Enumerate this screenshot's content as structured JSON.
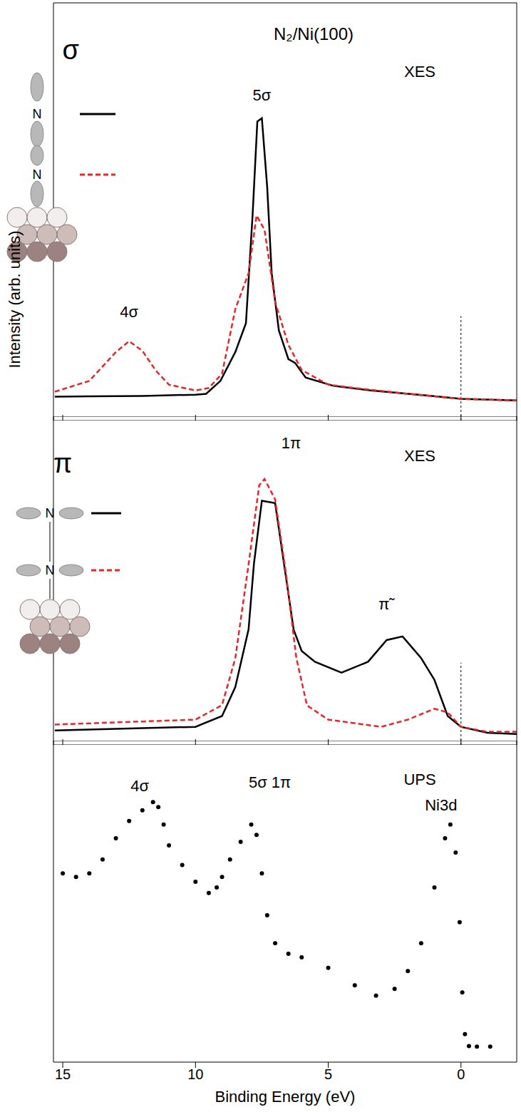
{
  "chart_data": [
    {
      "type": "line",
      "title": "N₂/Ni(100)",
      "ylabel": "Intensity (arb. units)",
      "xlim": [
        15.35,
        -2.1
      ],
      "xticks": [
        15,
        10,
        5,
        0
      ],
      "ylim": [
        0,
        100
      ],
      "yticks": [],
      "tick_labels": false,
      "legend": "upper left",
      "vlines": [
        0
      ],
      "annotations": [
        {
          "text": "σ",
          "x": 14.7,
          "y": 88.8
        },
        {
          "text": "5σ",
          "x": 7.5,
          "y": 78
        },
        {
          "text": "4σ",
          "x": 12.5,
          "y": 26
        },
        {
          "text": "XES",
          "x": 1.55,
          "y": 83.6
        }
      ],
      "series": [
        {
          "name": "N",
          "color": "#000000",
          "line_style": "solid",
          "x": [
            15.3,
            14,
            12,
            10,
            9.6,
            9.06,
            8.5,
            8.1,
            7.85,
            7.67,
            7.5,
            7.3,
            7.13,
            6.86,
            6.5,
            6.25,
            5.85,
            4.8,
            3.4,
            1.3,
            0,
            -2.1
          ],
          "values": [
            5.7,
            5.8,
            5.9,
            6.2,
            6.4,
            9.5,
            16.4,
            23.3,
            49.1,
            71.6,
            72.4,
            56,
            35.3,
            21.6,
            14.7,
            13.8,
            10.3,
            8.3,
            7.2,
            6,
            5.2,
            4.8
          ]
        },
        {
          "name": "N",
          "color": "#e8262a",
          "line_style": "dashed",
          "x": [
            15.3,
            14,
            13,
            12.5,
            12,
            11.5,
            11,
            10,
            9.5,
            9,
            8.5,
            8,
            7.7,
            7.4,
            7,
            6.5,
            6,
            5,
            4,
            2,
            0,
            -2.1
          ],
          "values": [
            6.9,
            9.5,
            16.4,
            19,
            16.7,
            12,
            8.6,
            7.2,
            7.8,
            11.2,
            26.7,
            35.3,
            49.1,
            45.7,
            28.4,
            18.1,
            12.1,
            8.6,
            7.8,
            6.4,
            5.2,
            4.8
          ]
        }
      ]
    },
    {
      "type": "line",
      "xlim": [
        15.35,
        -2.1
      ],
      "xticks": [
        15,
        10,
        5,
        0
      ],
      "ylim": [
        0,
        100
      ],
      "yticks": [],
      "tick_labels": false,
      "legend": "upper left",
      "vlines": [
        0
      ],
      "annotations": [
        {
          "text": "π",
          "x": 15,
          "y": 85.7
        },
        {
          "text": "1π",
          "x": 6.4,
          "y": 92
        },
        {
          "text": "π̃",
          "x": 2.9,
          "y": 43
        },
        {
          "text": "XES",
          "x": 1.55,
          "y": 88
        }
      ],
      "series": [
        {
          "name": "N",
          "color": "#000000",
          "line_style": "solid",
          "x": [
            15.3,
            10,
            9,
            8.5,
            8,
            7.8,
            7.5,
            7,
            6.7,
            6.3,
            6,
            5.5,
            4.5,
            3.5,
            2.8,
            2.2,
            1.5,
            1,
            0.5,
            0,
            -1,
            -2.1
          ],
          "values": [
            4.4,
            5.5,
            8.8,
            17.6,
            35.2,
            55,
            74.3,
            73.6,
            57,
            35,
            28.6,
            25.3,
            22,
            25.3,
            31.9,
            33,
            26.4,
            19.8,
            8.8,
            5.5,
            3.7,
            3.3
          ]
        },
        {
          "name": "N",
          "color": "#e8262a",
          "line_style": "dashed",
          "x": [
            15.3,
            10,
            9,
            8.5,
            8,
            7.6,
            7.4,
            7,
            6.6,
            6.2,
            5.8,
            5,
            4,
            3,
            2,
            1,
            0.5,
            0,
            -1,
            -2.1
          ],
          "values": [
            6.2,
            7.7,
            12.1,
            26.4,
            55,
            79,
            80.9,
            74.7,
            52.7,
            26.4,
            12,
            7.7,
            6.6,
            5.5,
            7.7,
            11,
            9.9,
            5.5,
            4,
            4
          ]
        }
      ]
    },
    {
      "type": "scatter",
      "xlabel": "Binding Energy (eV)",
      "xlim": [
        15.35,
        -2.1
      ],
      "xticks": [
        15,
        10,
        5,
        0
      ],
      "ylim": [
        0,
        100
      ],
      "yticks": [],
      "tick_labels": "x",
      "annotations": [
        {
          "text": "UPS",
          "x": 1.55,
          "y": 88
        },
        {
          "text": "4σ",
          "x": 12.1,
          "y": 85.9
        },
        {
          "text": "5σ 1π",
          "x": 7.2,
          "y": 87
        },
        {
          "text": "Ni3d",
          "x": 0.75,
          "y": 80
        }
      ],
      "series": [
        {
          "color": "#000000",
          "marker": "circle",
          "x": [
            15,
            14.5,
            14,
            13.5,
            13,
            12.5,
            12,
            11.6,
            11.4,
            11.2,
            11,
            10.5,
            10,
            9.5,
            9.2,
            9,
            8.7,
            8.3,
            7.9,
            7.7,
            7.5,
            7.3,
            7,
            6.5,
            6,
            5,
            4,
            3.2,
            2.5,
            2,
            1.5,
            1,
            0.6,
            0.4,
            0.2,
            0.05,
            -0.05,
            -0.15,
            -0.3,
            -0.6,
            -1.1
          ],
          "values": [
            58.7,
            57.6,
            58.7,
            63,
            69.6,
            75,
            78.3,
            80.9,
            79.3,
            73.9,
            67.4,
            61.3,
            56.1,
            52.6,
            54.3,
            57.6,
            63,
            68.5,
            73.9,
            70.7,
            58.7,
            45.7,
            37,
            33.7,
            32.6,
            29.3,
            23.9,
            20.7,
            22.8,
            28.3,
            37,
            54.3,
            69.6,
            73.9,
            65.2,
            43.5,
            21.7,
            8.7,
            5,
            4.8,
            4.8
          ]
        }
      ]
    }
  ]
}
